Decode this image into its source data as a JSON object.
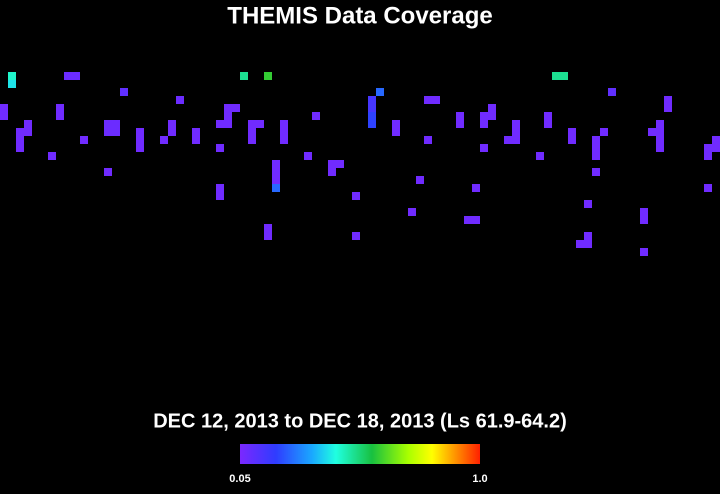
{
  "title": "THEMIS Data Coverage",
  "subtitle": "DEC 12, 2013 to DEC 18, 2013 (Ls 61.9-64.2)",
  "colorbar": {
    "ticks": [
      0.05,
      {
        "value": 1,
        "label": "1.0"
      }
    ]
  },
  "cells": [
    [
      1,
      9,
      0.45
    ],
    [
      1,
      10,
      0.4
    ],
    [
      8,
      9,
      0.08
    ],
    [
      9,
      9,
      0.08
    ],
    [
      15,
      11,
      0.1
    ],
    [
      30,
      9,
      0.5
    ],
    [
      33,
      9,
      0.6
    ],
    [
      47,
      11,
      0.25
    ],
    [
      69,
      9,
      0.5
    ],
    [
      70,
      9,
      0.5
    ],
    [
      76,
      11,
      0.1
    ],
    [
      0,
      13,
      0.07
    ],
    [
      0,
      14,
      0.07
    ],
    [
      7,
      13,
      0.07
    ],
    [
      7,
      14,
      0.07
    ],
    [
      22,
      12,
      0.08
    ],
    [
      28,
      13,
      0.07
    ],
    [
      29,
      13,
      0.07
    ],
    [
      28,
      14,
      0.07
    ],
    [
      28,
      15,
      0.07
    ],
    [
      27,
      15,
      0.07
    ],
    [
      46,
      12,
      0.15
    ],
    [
      46,
      13,
      0.15
    ],
    [
      46,
      14,
      0.2
    ],
    [
      46,
      15,
      0.2
    ],
    [
      53,
      12,
      0.07
    ],
    [
      54,
      12,
      0.07
    ],
    [
      61,
      13,
      0.07
    ],
    [
      83,
      12,
      0.07
    ],
    [
      83,
      13,
      0.07
    ],
    [
      2,
      16,
      0.07
    ],
    [
      3,
      15,
      0.07
    ],
    [
      3,
      16,
      0.07
    ],
    [
      2,
      17,
      0.07
    ],
    [
      2,
      18,
      0.07
    ],
    [
      13,
      15,
      0.08
    ],
    [
      14,
      15,
      0.08
    ],
    [
      13,
      16,
      0.08
    ],
    [
      14,
      16,
      0.08
    ],
    [
      17,
      16,
      0.07
    ],
    [
      17,
      17,
      0.07
    ],
    [
      17,
      18,
      0.07
    ],
    [
      21,
      15,
      0.07
    ],
    [
      21,
      16,
      0.07
    ],
    [
      24,
      16,
      0.07
    ],
    [
      24,
      17,
      0.07
    ],
    [
      31,
      15,
      0.07
    ],
    [
      32,
      15,
      0.07
    ],
    [
      31,
      16,
      0.07
    ],
    [
      31,
      17,
      0.07
    ],
    [
      35,
      15,
      0.07
    ],
    [
      35,
      16,
      0.07
    ],
    [
      35,
      17,
      0.07
    ],
    [
      39,
      14,
      0.07
    ],
    [
      49,
      15,
      0.07
    ],
    [
      49,
      16,
      0.07
    ],
    [
      57,
      14,
      0.07
    ],
    [
      57,
      15,
      0.07
    ],
    [
      60,
      14,
      0.07
    ],
    [
      61,
      14,
      0.07
    ],
    [
      60,
      15,
      0.07
    ],
    [
      64,
      15,
      0.07
    ],
    [
      64,
      16,
      0.07
    ],
    [
      63,
      17,
      0.07
    ],
    [
      64,
      17,
      0.07
    ],
    [
      68,
      14,
      0.07
    ],
    [
      68,
      15,
      0.07
    ],
    [
      71,
      16,
      0.07
    ],
    [
      71,
      17,
      0.07
    ],
    [
      75,
      16,
      0.07
    ],
    [
      74,
      17,
      0.07
    ],
    [
      74,
      18,
      0.07
    ],
    [
      74,
      19,
      0.07
    ],
    [
      81,
      16,
      0.07
    ],
    [
      82,
      15,
      0.07
    ],
    [
      82,
      16,
      0.07
    ],
    [
      82,
      17,
      0.07
    ],
    [
      82,
      18,
      0.07
    ],
    [
      88,
      18,
      0.07
    ],
    [
      89,
      17,
      0.07
    ],
    [
      89,
      18,
      0.07
    ],
    [
      88,
      19,
      0.07
    ],
    [
      10,
      17,
      0.07
    ],
    [
      20,
      17,
      0.07
    ],
    [
      6,
      19,
      0.07
    ],
    [
      27,
      18,
      0.07
    ],
    [
      53,
      17,
      0.07
    ],
    [
      60,
      18,
      0.07
    ],
    [
      38,
      19,
      0.07
    ],
    [
      67,
      19,
      0.07
    ],
    [
      13,
      21,
      0.07
    ],
    [
      34,
      20,
      0.07
    ],
    [
      34,
      21,
      0.07
    ],
    [
      34,
      22,
      0.07
    ],
    [
      34,
      23,
      0.25
    ],
    [
      41,
      20,
      0.07
    ],
    [
      42,
      20,
      0.07
    ],
    [
      41,
      21,
      0.07
    ],
    [
      27,
      23,
      0.07
    ],
    [
      27,
      24,
      0.07
    ],
    [
      44,
      24,
      0.07
    ],
    [
      52,
      22,
      0.07
    ],
    [
      59,
      23,
      0.07
    ],
    [
      74,
      21,
      0.07
    ],
    [
      88,
      23,
      0.07
    ],
    [
      73,
      25,
      0.07
    ],
    [
      51,
      26,
      0.07
    ],
    [
      58,
      27,
      0.07
    ],
    [
      59,
      27,
      0.07
    ],
    [
      80,
      26,
      0.07
    ],
    [
      80,
      27,
      0.07
    ],
    [
      33,
      28,
      0.07
    ],
    [
      33,
      29,
      0.07
    ],
    [
      44,
      29,
      0.07
    ],
    [
      73,
      30,
      0.07
    ],
    [
      72,
      30,
      0.07
    ],
    [
      73,
      29,
      0.07
    ],
    [
      80,
      31,
      0.07
    ]
  ]
}
